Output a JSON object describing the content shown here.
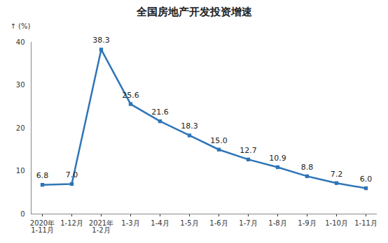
{
  "chart_data": {
    "type": "line",
    "title": "全国房地产开发投资增速",
    "y_label": "(%)",
    "categories": [
      "2020年\n1-11月",
      "1-12月",
      "2021年\n1-2月",
      "1-3月",
      "1-4月",
      "1-5月",
      "1-6月",
      "1-7月",
      "1-8月",
      "1-9月",
      "1-10月",
      "1-11月"
    ],
    "values": [
      6.8,
      7.0,
      38.3,
      25.6,
      21.6,
      18.3,
      15.0,
      12.7,
      10.9,
      8.8,
      7.2,
      6.0
    ],
    "value_labels": [
      "6.8",
      "7.0",
      "38.3",
      "25.6",
      "21.6",
      "18.3",
      "15.0",
      "12.7",
      "10.9",
      "8.8",
      "7.2",
      "6.0"
    ],
    "color": "#2e75b6",
    "marker": "square",
    "line_style": "solid",
    "ylim": [
      0,
      40
    ],
    "yticks": [
      0,
      10,
      20,
      30,
      40
    ],
    "grid": false,
    "data_labels": true
  }
}
